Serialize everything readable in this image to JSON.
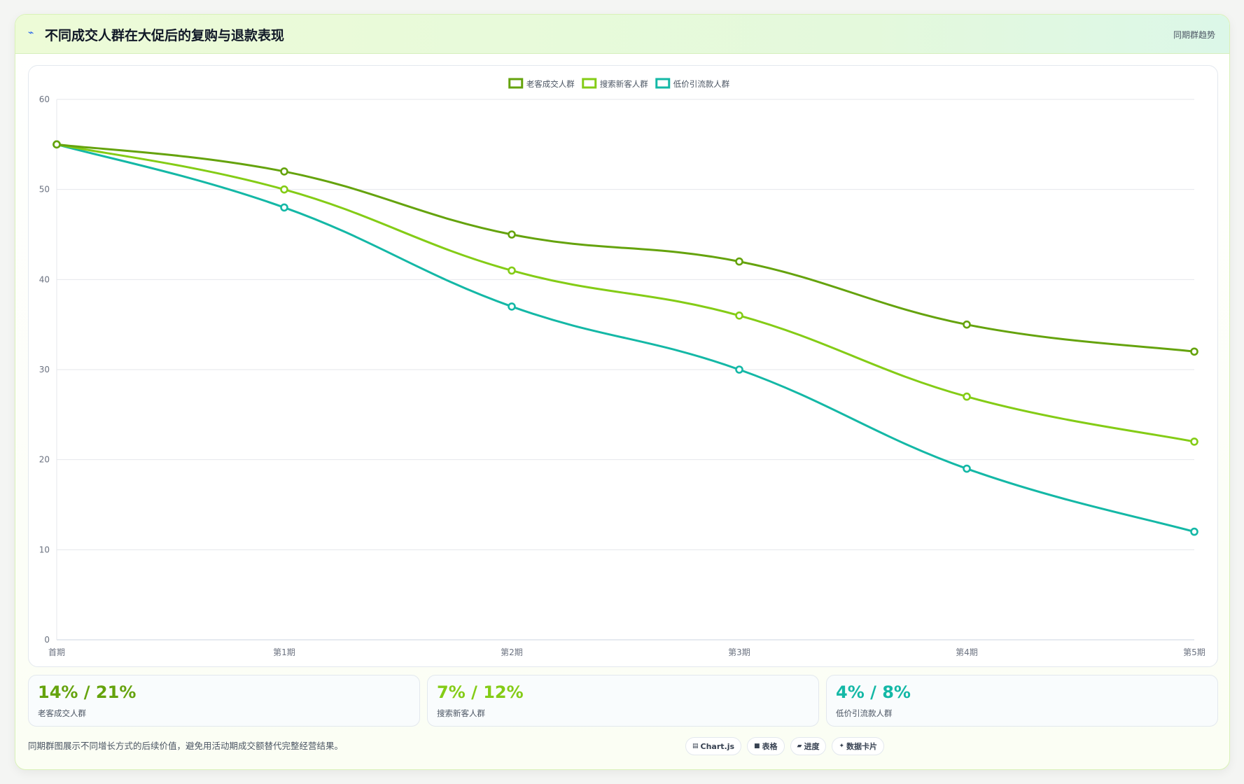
{
  "header": {
    "icon": "trend-icon",
    "title": "不同成交人群在大促后的复购与退款表现",
    "badge": "同期群趋势"
  },
  "chart_data": {
    "type": "line",
    "categories": [
      "首期",
      "第1期",
      "第2期",
      "第3期",
      "第4期",
      "第5期"
    ],
    "series": [
      {
        "name": "老客成交人群",
        "color": "#65a30d",
        "values": [
          55,
          52,
          45,
          42,
          35,
          32
        ]
      },
      {
        "name": "搜索新客人群",
        "color": "#84cc16",
        "values": [
          55,
          50,
          41,
          36,
          27,
          22
        ]
      },
      {
        "name": "低价引流款人群",
        "color": "#14b8a6",
        "values": [
          55,
          48,
          37,
          30,
          19,
          12
        ]
      }
    ],
    "ylim": [
      0,
      60
    ],
    "yticks": [
      0,
      10,
      20,
      30,
      40,
      50,
      60
    ],
    "grid": true,
    "legend_position": "top-center",
    "smooth": true
  },
  "stats": [
    {
      "value": "14% / 21%",
      "label": "老客成交人群",
      "color": "#65a30d"
    },
    {
      "value": "7% / 12%",
      "label": "搜索新客人群",
      "color": "#84cc16"
    },
    {
      "value": "4% / 8%",
      "label": "低价引流款人群",
      "color": "#14b8a6"
    }
  ],
  "footnote": "同期群图展示不同增长方式的后续价值，避免用活动期成交额替代完整经营结果。",
  "tags": [
    {
      "icon": "chart-icon",
      "glyph": "▤",
      "label": "Chart.js"
    },
    {
      "icon": "table-icon",
      "glyph": "■",
      "label": "表格"
    },
    {
      "icon": "progress-icon",
      "glyph": "▰",
      "label": "进度"
    },
    {
      "icon": "data-card-icon",
      "glyph": "✦",
      "label": "数据卡片"
    }
  ]
}
